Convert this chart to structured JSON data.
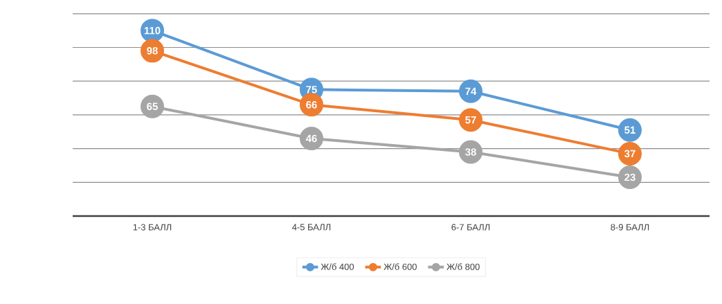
{
  "chart_data": {
    "type": "line",
    "categories": [
      "1-3 БАЛЛ",
      "4-5 БАЛЛ",
      "6-7 БАЛЛ",
      "8-9 БАЛЛ"
    ],
    "series": [
      {
        "name": "Ж/б 400",
        "color": "#5b9bd5",
        "values": [
          110,
          75,
          74,
          51
        ]
      },
      {
        "name": "Ж/б 600",
        "color": "#ed7d31",
        "values": [
          98,
          66,
          57,
          37
        ]
      },
      {
        "name": "Ж/б 800",
        "color": "#a5a5a5",
        "values": [
          65,
          46,
          38,
          23
        ]
      }
    ],
    "tick_labels": "x",
    "grid": "y",
    "legend": "bottom",
    "marker": "circle",
    "line_style": "solid",
    "data_labels": true
  }
}
